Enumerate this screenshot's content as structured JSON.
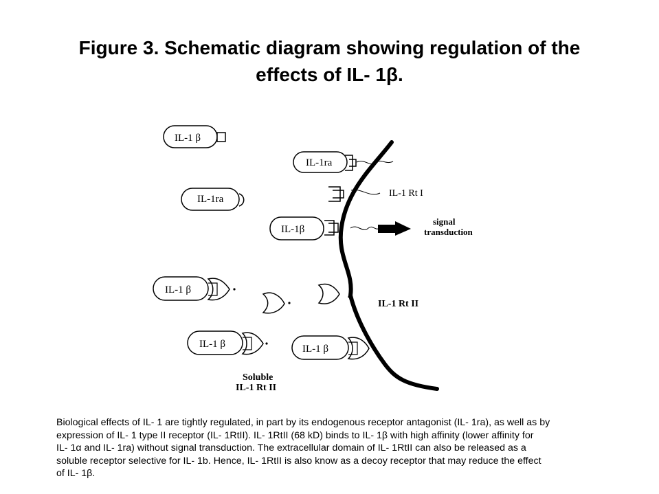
{
  "title": {
    "line1": "Figure 3. Schematic diagram showing regulation of the",
    "line2": "effects of IL- 1β."
  },
  "labels": {
    "il1b_top": "IL-1 β",
    "il1ra_top": "IL-1ra",
    "il1ra_left": "IL-1ra",
    "il1b_mid": "IL-1β",
    "il1b_left": "IL-1 β",
    "il1b_bottom_left": "IL-1 β",
    "il1b_bottom": "IL-1 β",
    "rt1": "IL-1 Rt I",
    "signal1": "signal",
    "signal2": "transduction",
    "rt2": "IL-1 Rt II",
    "soluble1": "Soluble",
    "soluble2": "IL-1 Rt II"
  },
  "caption": [
    "Biological effects of IL- 1 are tightly regulated, in part by its endogenous receptor antagonist (IL- 1ra), as well as by",
    "expression of IL- 1 type II receptor (IL- 1RtII). IL- 1RtII (68 kD) binds to IL- 1β with high affinity (lower affinity for",
    "IL- 1α and IL- 1ra) without signal transduction. The extracellular domain of IL- 1RtII can also be released as a",
    "soluble receptor selective for IL- 1b. Hence, IL- 1RtII is also know as a decoy receptor that may reduce the effect",
    "of IL- 1β."
  ]
}
